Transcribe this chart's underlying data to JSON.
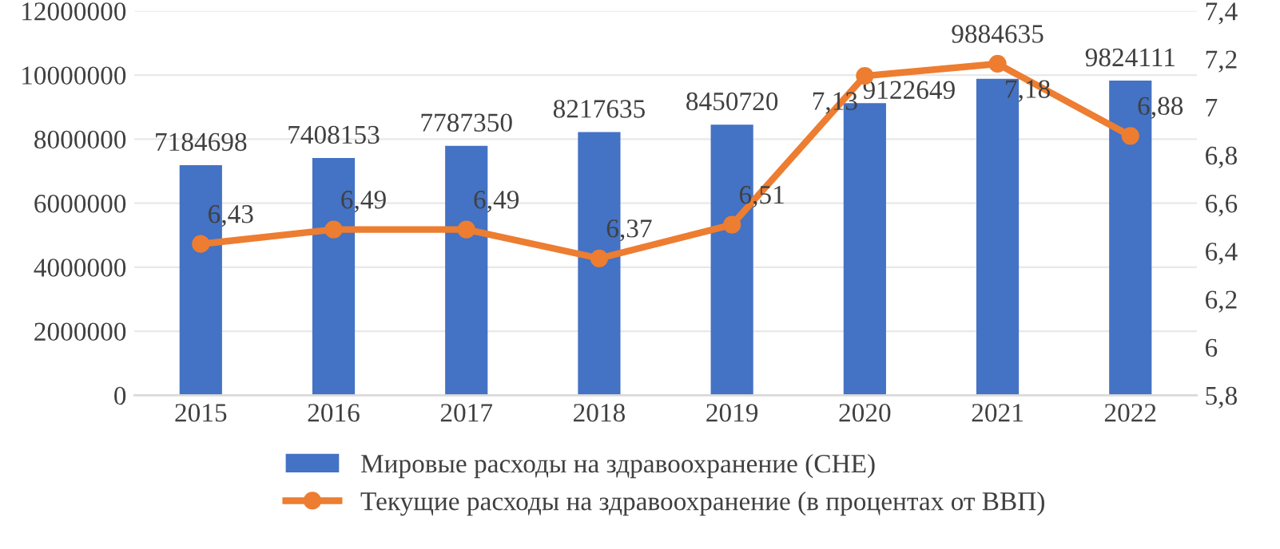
{
  "chart_data": {
    "type": "bar",
    "categories": [
      "2015",
      "2016",
      "2017",
      "2018",
      "2019",
      "2020",
      "2021",
      "2022"
    ],
    "series": [
      {
        "name": "Мировые расходы на здравоохранение (CHE)",
        "color": "#4472c4",
        "values": [
          7184698,
          7408153,
          7787350,
          8217635,
          8450720,
          9122649,
          9884635,
          9824111
        ],
        "value_labels": [
          "7184698",
          "7408153",
          "7787350",
          "8217635",
          "8450720",
          "9122649",
          "9884635",
          "9824111"
        ]
      },
      {
        "name": "Текущие расходы на здравоохранение (в процентах от ВВП)",
        "type": "line",
        "axis": "y2",
        "color": "#ed7d31",
        "marker": "circle",
        "values": [
          6.43,
          6.49,
          6.49,
          6.37,
          6.51,
          7.13,
          7.18,
          6.88
        ],
        "value_labels": [
          "6,43",
          "6,49",
          "6,49",
          "6,37",
          "6,51",
          "7,13",
          "7,18",
          "6,88"
        ]
      }
    ],
    "ylim": [
      0,
      12000000
    ],
    "yticks": [
      0,
      2000000,
      4000000,
      6000000,
      8000000,
      10000000,
      12000000
    ],
    "y2lim": [
      5.8,
      7.4
    ],
    "y2ticks": [
      {
        "value": 5.8,
        "label": "5,8"
      },
      6,
      {
        "value": 6.2,
        "label": "6,2"
      },
      {
        "value": 6.4,
        "label": "6,4"
      },
      {
        "value": 6.6,
        "label": "6,6"
      },
      {
        "value": 6.8,
        "label": "6,8"
      },
      7,
      {
        "value": 7.2,
        "label": "7,2"
      },
      {
        "value": 7.4,
        "label": "7,4"
      }
    ],
    "grid": "y",
    "legend": "bottom"
  }
}
